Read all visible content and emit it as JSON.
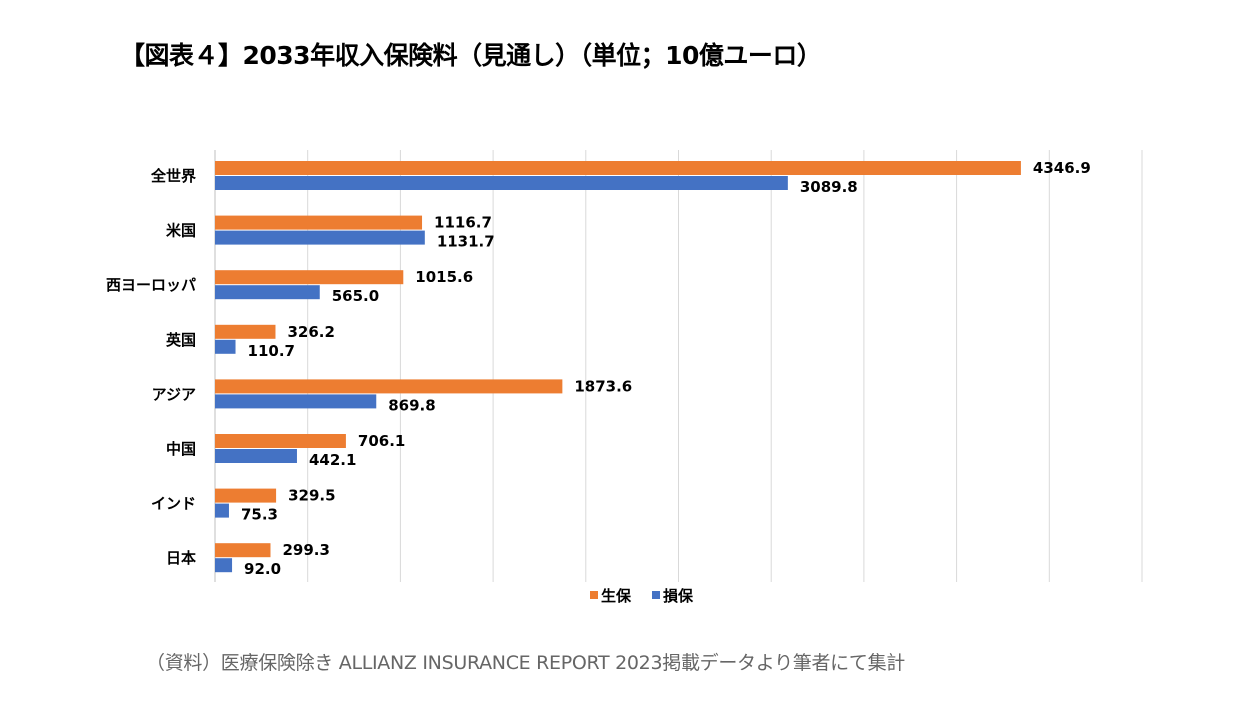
{
  "title": "【図表４】2033年収入保険料（見通し）（単位；10億ユーロ）",
  "note": "（資料）医療保険除き ALLIANZ INSURANCE REPORT 2023掲載データより筆者にて集計",
  "chart_data": {
    "type": "bar",
    "orientation": "horizontal",
    "title": "【図表４】2033年収入保険料（見通し）（単位；10億ユーロ）",
    "categories": [
      "全世界",
      "米国",
      "西ヨーロッパ",
      "英国",
      "アジア",
      "中国",
      "インド",
      "日本"
    ],
    "series": [
      {
        "name": "生保",
        "color": "#ED7D31",
        "values": [
          4346.9,
          1116.7,
          1015.6,
          326.2,
          1873.6,
          706.1,
          329.5,
          299.3
        ]
      },
      {
        "name": "損保",
        "color": "#4472C4",
        "values": [
          3089.8,
          1131.7,
          565.0,
          110.7,
          869.8,
          442.1,
          75.3,
          92.0
        ]
      }
    ],
    "xlim": [
      0,
      5000
    ],
    "x_gridline_step": 500,
    "grid": true,
    "axis_tick_labels_shown": false,
    "data_labels": true,
    "legend": "bottom"
  }
}
